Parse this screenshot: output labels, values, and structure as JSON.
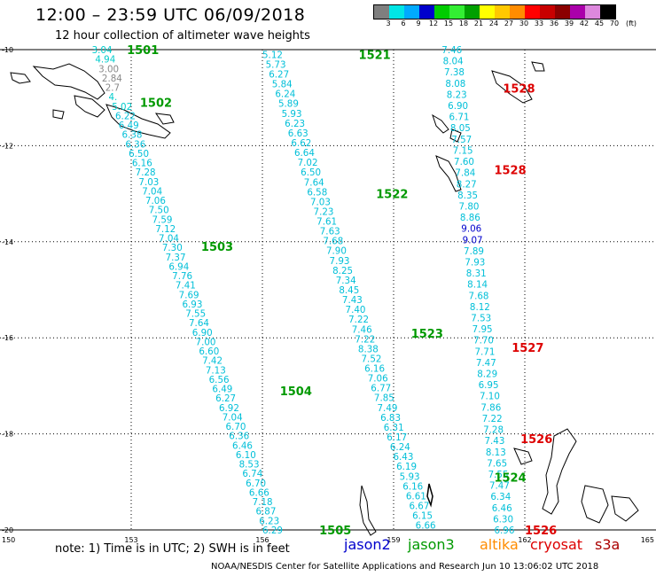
{
  "title": "12:00 – 23:59 UTC 06/09/2018",
  "subtitle": "12 hour collection of altimeter wave heights",
  "scale": {
    "colors": [
      "#7f7f7f",
      "#00e5e5",
      "#00aaff",
      "#0000cc",
      "#00cc00",
      "#33ee33",
      "#00a000",
      "#ffff00",
      "#ffc800",
      "#ff8c00",
      "#ff0000",
      "#c80000",
      "#8b0000",
      "#aa00aa",
      "#dd88dd",
      "#000000"
    ],
    "labels": [
      "3",
      "6",
      "9",
      "12",
      "15",
      "18",
      "21",
      "24",
      "27",
      "30",
      "33",
      "36",
      "39",
      "42",
      "45",
      "70",
      "(ft)"
    ]
  },
  "axes": {
    "x_ticks": [
      "150",
      "153",
      "156",
      "159",
      "162",
      "165"
    ],
    "y_ticks": [
      "-10",
      "-12",
      "-14",
      "-16",
      "-18",
      "-20"
    ]
  },
  "note": "note:  1) Time is in UTC;  2) SWH is in feet",
  "legend": [
    {
      "label": "jason2",
      "color": "#0000cc"
    },
    {
      "label": "jason3",
      "color": "#009900"
    },
    {
      "label": "altika",
      "color": "#ff8c00"
    },
    {
      "label": "cryosat",
      "color": "#dd0000"
    },
    {
      "label": "s3a",
      "color": "#aa0000"
    }
  ],
  "credit": "NOAA/NESDIS Center for Satellite Applications and Research      Jun 10 13:06:02 UTC 2018",
  "pass_labels": [
    {
      "text": "1501",
      "lon": 152.9,
      "lat": -10.0,
      "color": "#009900"
    },
    {
      "text": "1502",
      "lon": 153.2,
      "lat": -11.1,
      "color": "#009900"
    },
    {
      "text": "1503",
      "lon": 154.6,
      "lat": -14.1,
      "color": "#009900"
    },
    {
      "text": "1504",
      "lon": 156.4,
      "lat": -17.1,
      "color": "#009900"
    },
    {
      "text": "1505",
      "lon": 157.3,
      "lat": -20.0,
      "color": "#009900"
    },
    {
      "text": "1521",
      "lon": 158.2,
      "lat": -10.1,
      "color": "#009900"
    },
    {
      "text": "1522",
      "lon": 158.6,
      "lat": -13.0,
      "color": "#009900"
    },
    {
      "text": "1523",
      "lon": 159.4,
      "lat": -15.9,
      "color": "#009900"
    },
    {
      "text": "1524",
      "lon": 161.3,
      "lat": -18.9,
      "color": "#009900"
    },
    {
      "text": "1528",
      "lon": 161.5,
      "lat": -10.8,
      "color": "#dd0000"
    },
    {
      "text": "1528",
      "lon": 161.3,
      "lat": -12.5,
      "color": "#dd0000"
    },
    {
      "text": "1527",
      "lon": 161.7,
      "lat": -16.2,
      "color": "#dd0000"
    },
    {
      "text": "1526",
      "lon": 161.9,
      "lat": -18.1,
      "color": "#dd0000"
    },
    {
      "text": "1526",
      "lon": 162.0,
      "lat": -20.0,
      "color": "#dd0000"
    }
  ],
  "tracks": [
    {
      "id": "1501-1505",
      "start": [
        152.1,
        -10.0
      ],
      "end": [
        156.0,
        -20.0
      ],
      "values": [
        {
          "v": "3.04",
          "c": "#00cccc"
        },
        {
          "v": "4.94",
          "c": "#00cccc"
        },
        {
          "v": "3.00",
          "c": "#888888"
        },
        {
          "v": "2.84",
          "c": "#888888"
        },
        {
          "v": "2.7",
          "c": "#888888"
        },
        {
          "v": "4.",
          "c": "#00cccc"
        },
        {
          "v": "5.02",
          "c": "#00cccc"
        },
        {
          "v": "6.22"
        },
        {
          "v": "6.49"
        },
        {
          "v": "6.38"
        },
        {
          "v": "6.36"
        },
        {
          "v": "6.50"
        },
        {
          "v": "6.16"
        },
        {
          "v": "7.28"
        },
        {
          "v": "7.03"
        },
        {
          "v": "7.04"
        },
        {
          "v": "7.06"
        },
        {
          "v": "7.50"
        },
        {
          "v": "7.59"
        },
        {
          "v": "7.12"
        },
        {
          "v": "7.04"
        },
        {
          "v": "7.30"
        },
        {
          "v": "7.37"
        },
        {
          "v": "6.94"
        },
        {
          "v": "7.76"
        },
        {
          "v": "7.41"
        },
        {
          "v": "7.69"
        },
        {
          "v": "6.93"
        },
        {
          "v": "7.55"
        },
        {
          "v": "7.64"
        },
        {
          "v": "6.90"
        },
        {
          "v": "7.00"
        },
        {
          "v": "6.60"
        },
        {
          "v": "7.42"
        },
        {
          "v": "7.13"
        },
        {
          "v": "6.56"
        },
        {
          "v": "6.49"
        },
        {
          "v": "6.27"
        },
        {
          "v": "6.92"
        },
        {
          "v": "7.04"
        },
        {
          "v": "6.70"
        },
        {
          "v": "6.36"
        },
        {
          "v": "6.46"
        },
        {
          "v": "6.10"
        },
        {
          "v": "8.53"
        },
        {
          "v": "6.74"
        },
        {
          "v": "6.70"
        },
        {
          "v": "6.66"
        },
        {
          "v": "7.18"
        },
        {
          "v": "6.87"
        },
        {
          "v": "6.23"
        },
        {
          "v": "6.29"
        }
      ]
    },
    {
      "id": "1521-1523",
      "start": [
        156.0,
        -10.1
      ],
      "end": [
        159.5,
        -19.9
      ],
      "values": [
        {
          "v": "5.12"
        },
        {
          "v": "5.73"
        },
        {
          "v": "6.27"
        },
        {
          "v": "5.84"
        },
        {
          "v": "6.24"
        },
        {
          "v": "5.89"
        },
        {
          "v": "5.93"
        },
        {
          "v": "6.23"
        },
        {
          "v": "6.63"
        },
        {
          "v": "6.62"
        },
        {
          "v": "6.64"
        },
        {
          "v": "7.02"
        },
        {
          "v": "6.50"
        },
        {
          "v": "7.64"
        },
        {
          "v": "6.58"
        },
        {
          "v": "7.03"
        },
        {
          "v": "7.23"
        },
        {
          "v": "7.61"
        },
        {
          "v": "7.63"
        },
        {
          "v": "7.68"
        },
        {
          "v": "7.90"
        },
        {
          "v": "7.93"
        },
        {
          "v": "8.25"
        },
        {
          "v": "7.34"
        },
        {
          "v": "8.45"
        },
        {
          "v": "7.43"
        },
        {
          "v": "7.40"
        },
        {
          "v": "7.22"
        },
        {
          "v": "7.46"
        },
        {
          "v": "7.22"
        },
        {
          "v": "8.38"
        },
        {
          "v": "7.52"
        },
        {
          "v": "6.16"
        },
        {
          "v": "7.06"
        },
        {
          "v": "6.77"
        },
        {
          "v": "7.85"
        },
        {
          "v": "7.49"
        },
        {
          "v": "6.83"
        },
        {
          "v": "6.31"
        },
        {
          "v": "6.17"
        },
        {
          "v": "6.24"
        },
        {
          "v": "6.43"
        },
        {
          "v": "6.19"
        },
        {
          "v": "5.93"
        },
        {
          "v": "6.16"
        },
        {
          "v": "6.61"
        },
        {
          "v": "6.67"
        },
        {
          "v": "6.15"
        },
        {
          "v": "6.66"
        }
      ]
    },
    {
      "id": "1524-1528",
      "start": [
        160.1,
        -10.0
      ],
      "end": [
        161.3,
        -20.0
      ],
      "values": [
        {
          "v": "7.46"
        },
        {
          "v": "8.04"
        },
        {
          "v": "7.38"
        },
        {
          "v": "8.08"
        },
        {
          "v": "8.23"
        },
        {
          "v": "6.90"
        },
        {
          "v": "6.71"
        },
        {
          "v": "8.05"
        },
        {
          "v": "7.57"
        },
        {
          "v": "7.15"
        },
        {
          "v": "7.60"
        },
        {
          "v": "7.84"
        },
        {
          "v": "8.27"
        },
        {
          "v": "8.35"
        },
        {
          "v": "7.80"
        },
        {
          "v": "8.86"
        },
        {
          "v": "9.06",
          "c": "#0000cc"
        },
        {
          "v": "9.07",
          "c": "#0000cc"
        },
        {
          "v": "7.89"
        },
        {
          "v": "7.93"
        },
        {
          "v": "8.31"
        },
        {
          "v": "8.14"
        },
        {
          "v": "7.68"
        },
        {
          "v": "8.12"
        },
        {
          "v": "7.53"
        },
        {
          "v": "7.95"
        },
        {
          "v": "7.70"
        },
        {
          "v": "7.71"
        },
        {
          "v": "7.47"
        },
        {
          "v": "8.29"
        },
        {
          "v": "6.95"
        },
        {
          "v": "7.10"
        },
        {
          "v": "7.86"
        },
        {
          "v": "7.22"
        },
        {
          "v": "7.28"
        },
        {
          "v": "7.43"
        },
        {
          "v": "8.13"
        },
        {
          "v": "7.65"
        },
        {
          "v": "7.55"
        },
        {
          "v": "7.47"
        },
        {
          "v": "6.34"
        },
        {
          "v": "6.46"
        },
        {
          "v": "6.30"
        },
        {
          "v": "6.96"
        }
      ]
    }
  ]
}
